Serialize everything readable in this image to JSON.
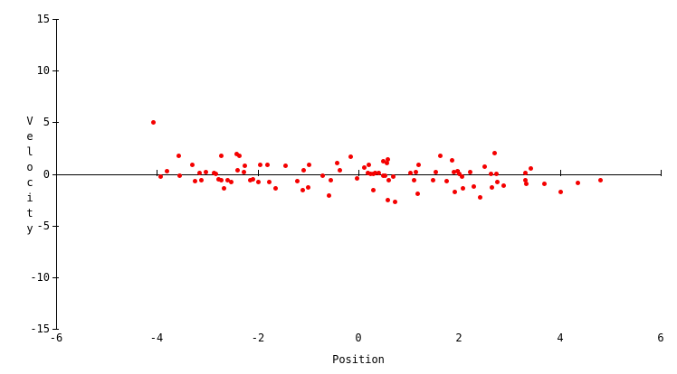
{
  "chart_data": {
    "type": "scatter",
    "title": "",
    "xlabel": "Position",
    "ylabel": "Velocity",
    "xlim": [
      -6,
      6
    ],
    "ylim": [
      -15,
      15
    ],
    "x_ticks": [
      -6,
      -4,
      -2,
      0,
      2,
      4,
      6
    ],
    "y_ticks": [
      15,
      10,
      5,
      0,
      -5,
      -10,
      -15
    ],
    "grid": false,
    "legend": null,
    "axis_color": "#000000",
    "background": "#ffffff",
    "marker_color": "#f40000",
    "points": [
      [
        -4.08,
        5.0
      ],
      [
        -3.94,
        -0.2
      ],
      [
        -3.8,
        0.32
      ],
      [
        -3.57,
        1.8
      ],
      [
        -3.55,
        -0.15
      ],
      [
        -3.3,
        0.96
      ],
      [
        -3.26,
        -0.64
      ],
      [
        -3.16,
        0.15
      ],
      [
        -3.12,
        -0.61
      ],
      [
        -3.04,
        0.24
      ],
      [
        -2.87,
        0.12
      ],
      [
        -2.83,
        0.03
      ],
      [
        -2.78,
        -0.5
      ],
      [
        -2.73,
        1.8
      ],
      [
        -2.73,
        -0.55
      ],
      [
        -2.67,
        -1.34
      ],
      [
        -2.61,
        -0.61
      ],
      [
        -2.54,
        -0.76
      ],
      [
        -2.42,
        1.93
      ],
      [
        -2.37,
        1.78
      ],
      [
        -2.4,
        0.35
      ],
      [
        -2.29,
        0.2
      ],
      [
        -2.26,
        0.79
      ],
      [
        -2.15,
        -0.61
      ],
      [
        -2.11,
        -0.5
      ],
      [
        -2.0,
        -0.7
      ],
      [
        -1.96,
        0.88
      ],
      [
        -1.81,
        0.9
      ],
      [
        -1.78,
        -0.73
      ],
      [
        -1.66,
        -1.34
      ],
      [
        -1.45,
        0.85
      ],
      [
        -1.22,
        -0.65
      ],
      [
        -1.12,
        -1.5
      ],
      [
        -1.1,
        0.4
      ],
      [
        -1.0,
        -1.25
      ],
      [
        -0.98,
        0.95
      ],
      [
        -0.72,
        -0.09
      ],
      [
        -0.59,
        -2.08
      ],
      [
        -0.56,
        -0.61
      ],
      [
        -0.43,
        1.05
      ],
      [
        -0.38,
        0.41
      ],
      [
        -0.16,
        1.73
      ],
      [
        -0.04,
        -0.41
      ],
      [
        0.11,
        0.67
      ],
      [
        0.2,
        0.96
      ],
      [
        0.18,
        0.12
      ],
      [
        0.24,
        0.03
      ],
      [
        0.28,
        0.03
      ],
      [
        0.33,
        0.15
      ],
      [
        0.29,
        -1.55
      ],
      [
        0.4,
        0.12
      ],
      [
        0.49,
        1.25
      ],
      [
        0.55,
        1.11
      ],
      [
        0.58,
        1.46
      ],
      [
        0.48,
        -0.09
      ],
      [
        0.52,
        -0.15
      ],
      [
        0.59,
        -0.61
      ],
      [
        0.58,
        -2.46
      ],
      [
        0.68,
        -0.24
      ],
      [
        0.71,
        -2.63
      ],
      [
        1.02,
        0.12
      ],
      [
        1.1,
        -0.55
      ],
      [
        1.14,
        0.18
      ],
      [
        1.19,
        0.96
      ],
      [
        1.17,
        -1.84
      ],
      [
        1.47,
        -0.59
      ],
      [
        1.53,
        0.24
      ],
      [
        1.62,
        1.78
      ],
      [
        1.75,
        -0.64
      ],
      [
        1.85,
        1.38
      ],
      [
        1.89,
        0.2
      ],
      [
        1.95,
        0.29
      ],
      [
        1.99,
        0.03
      ],
      [
        1.9,
        -1.67
      ],
      [
        2.05,
        -0.2
      ],
      [
        2.07,
        -1.38
      ],
      [
        2.21,
        0.24
      ],
      [
        2.29,
        -1.2
      ],
      [
        2.4,
        -2.19
      ],
      [
        2.49,
        0.76
      ],
      [
        2.63,
        0.03
      ],
      [
        2.64,
        -1.25
      ],
      [
        2.7,
        2.08
      ],
      [
        2.73,
        0.03
      ],
      [
        2.75,
        -0.7
      ],
      [
        2.88,
        -1.11
      ],
      [
        3.3,
        0.12
      ],
      [
        3.31,
        -0.61
      ],
      [
        3.32,
        -0.9
      ],
      [
        3.41,
        0.59
      ],
      [
        3.68,
        -0.9
      ],
      [
        4.0,
        -1.7
      ],
      [
        4.34,
        -0.8
      ],
      [
        4.8,
        -0.55
      ]
    ]
  }
}
